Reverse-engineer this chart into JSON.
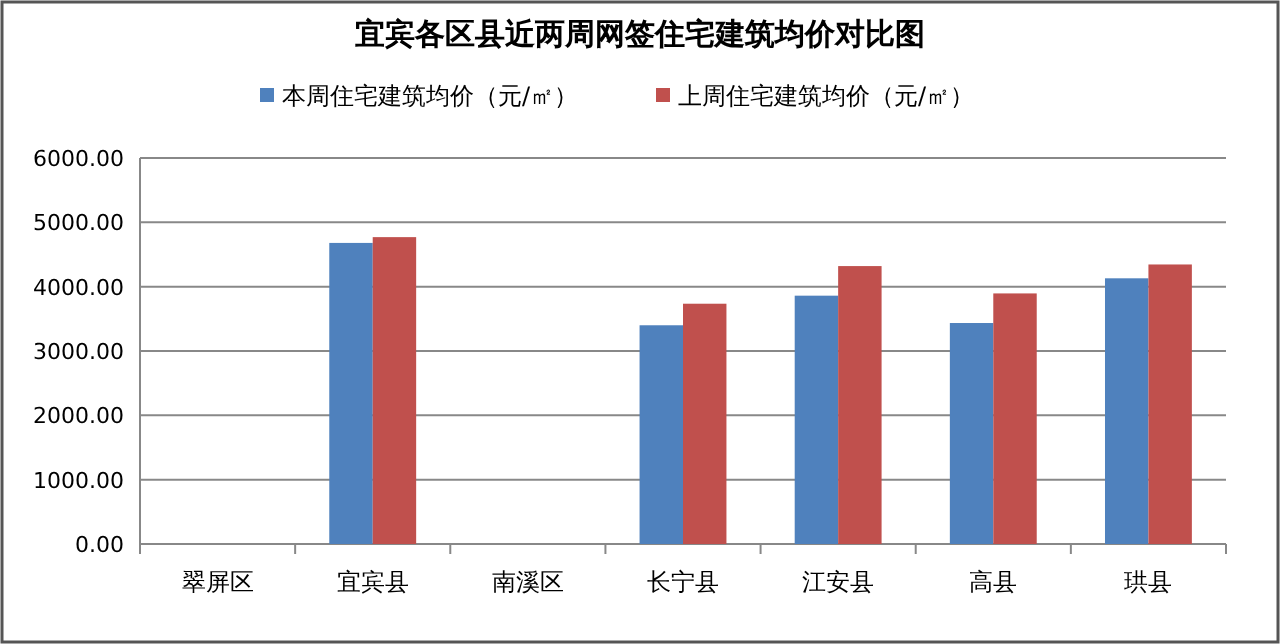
{
  "chart_data": {
    "type": "bar",
    "title": "宜宾各区县近两周网签住宅建筑均价对比图",
    "categories": [
      "翠屏区",
      "宜宾县",
      "南溪区",
      "长宁县",
      "江安县",
      "高县",
      "珙县"
    ],
    "series": [
      {
        "name": "本周住宅建筑均价（元/㎡）",
        "color": "#4f81bd",
        "values": [
          null,
          4680,
          null,
          3400,
          3860,
          3435,
          4130
        ]
      },
      {
        "name": "上周住宅建筑均价（元/㎡）",
        "color": "#c0504d",
        "values": [
          null,
          4770,
          null,
          3735,
          4320,
          3895,
          4345
        ]
      }
    ],
    "ylim": [
      0,
      6000
    ],
    "yticks": [
      {
        "value": 0,
        "label": "0.00"
      },
      {
        "value": 1000,
        "label": "1000.00"
      },
      {
        "value": 2000,
        "label": "2000.00"
      },
      {
        "value": 3000,
        "label": "3000.00"
      },
      {
        "value": 4000,
        "label": "4000.00"
      },
      {
        "value": 5000,
        "label": "5000.00"
      },
      {
        "value": 6000,
        "label": "6000.00"
      }
    ],
    "grid": "y",
    "legend": "top"
  }
}
